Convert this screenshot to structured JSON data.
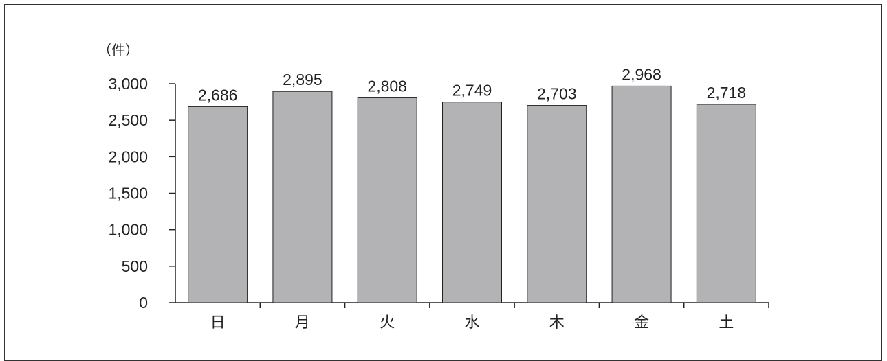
{
  "chart_data": {
    "type": "bar",
    "categories": [
      "日",
      "月",
      "火",
      "水",
      "木",
      "金",
      "土"
    ],
    "values": [
      2686,
      2895,
      2808,
      2749,
      2703,
      2968,
      2718
    ],
    "data_labels": [
      "2,686",
      "2,895",
      "2,808",
      "2,749",
      "2,703",
      "2,968",
      "2,718"
    ],
    "unit_label": "（件）",
    "ylim": [
      0,
      3000
    ],
    "y_ticks": [
      0,
      500,
      1000,
      1500,
      2000,
      2500,
      3000
    ],
    "y_tick_labels": [
      "0",
      "500",
      "1,000",
      "1,500",
      "2,000",
      "2,500",
      "3,000"
    ],
    "grid": false,
    "legend": "none",
    "colors": {
      "bar_fill": "#b3b3b6",
      "bar_stroke": "#222222",
      "axis": "#222222",
      "text": "#222222"
    }
  }
}
